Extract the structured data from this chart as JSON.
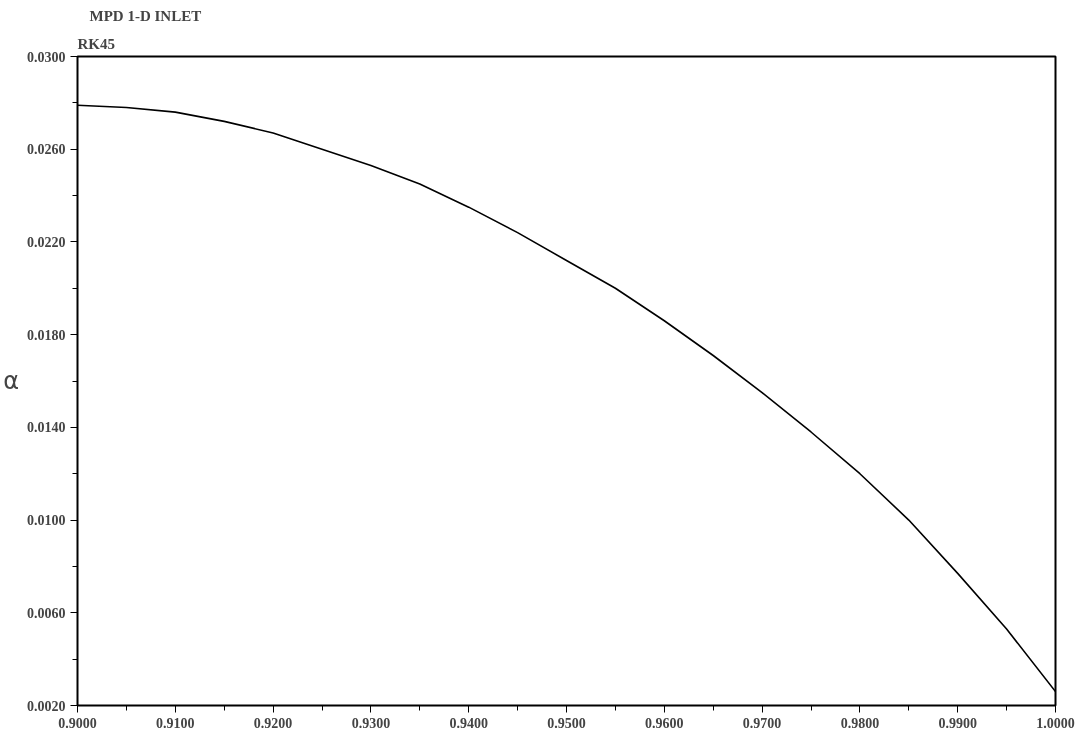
{
  "chart_data": {
    "type": "line",
    "title": "MPD 1-D INLET",
    "subtitle": "RK45",
    "ylabel": "α",
    "x": [
      0.9,
      0.905,
      0.91,
      0.915,
      0.92,
      0.925,
      0.93,
      0.935,
      0.94,
      0.945,
      0.95,
      0.955,
      0.96,
      0.965,
      0.97,
      0.975,
      0.98,
      0.985,
      0.99,
      0.995,
      1.0
    ],
    "series": [
      {
        "color": "#000000",
        "values": [
          0.0279,
          0.0278,
          0.0276,
          0.0272,
          0.0267,
          0.026,
          0.0253,
          0.0245,
          0.0235,
          0.0224,
          0.0212,
          0.02,
          0.0186,
          0.0171,
          0.0155,
          0.0138,
          0.012,
          0.01,
          0.0077,
          0.0053,
          0.0026
        ]
      }
    ],
    "xlim": [
      0.9,
      1.0
    ],
    "ylim": [
      0.002,
      0.03
    ],
    "xticks": [
      {
        "value": 0.9,
        "label": "0.9000"
      },
      {
        "value": 0.91,
        "label": "0.9100"
      },
      {
        "value": 0.92,
        "label": "0.9200"
      },
      {
        "value": 0.93,
        "label": "0.9300"
      },
      {
        "value": 0.94,
        "label": "0.9400"
      },
      {
        "value": 0.95,
        "label": "0.9500"
      },
      {
        "value": 0.96,
        "label": "0.9600"
      },
      {
        "value": 0.97,
        "label": "0.9700"
      },
      {
        "value": 0.98,
        "label": "0.9800"
      },
      {
        "value": 0.99,
        "label": "0.9900"
      },
      {
        "value": 1.0,
        "label": "1.0000"
      }
    ],
    "yticks": [
      {
        "value": 0.002,
        "label": "0.0020"
      },
      {
        "value": 0.006,
        "label": "0.0060"
      },
      {
        "value": 0.01,
        "label": "0.0100"
      },
      {
        "value": 0.014,
        "label": "0.0140"
      },
      {
        "value": 0.018,
        "label": "0.0180"
      },
      {
        "value": 0.022,
        "label": "0.0220"
      },
      {
        "value": 0.026,
        "label": "0.0260"
      },
      {
        "value": 0.03,
        "label": "0.0300"
      }
    ],
    "grid": false,
    "marker": "none",
    "line_style": "solid"
  }
}
